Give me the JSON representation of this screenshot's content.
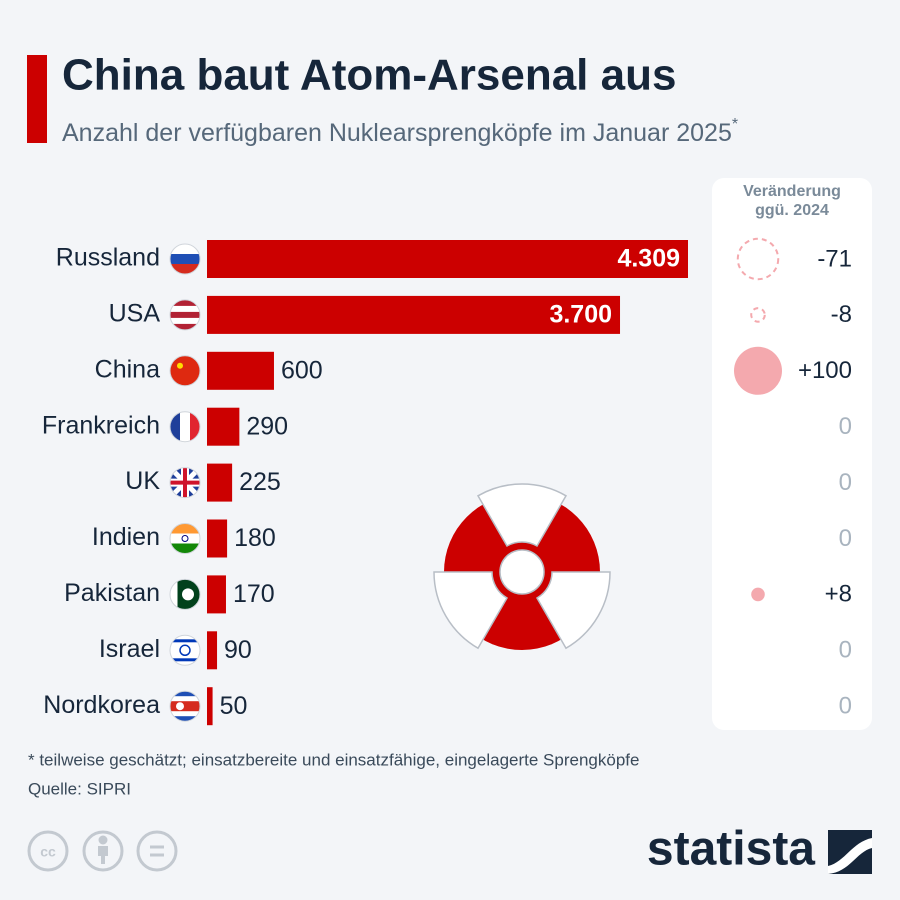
{
  "chart_data": {
    "type": "bar",
    "orientation": "horizontal",
    "title": "China baut Atom-Arsenal aus",
    "subtitle": "Anzahl der verfügbaren Nuklearsprengköpfe im Januar 2025",
    "subtitle_marker": "*",
    "categories": [
      "Russland",
      "USA",
      "China",
      "Frankreich",
      "UK",
      "Indien",
      "Pakistan",
      "Israel",
      "Nordkorea"
    ],
    "values": [
      4309,
      3700,
      600,
      290,
      225,
      180,
      170,
      90,
      50
    ],
    "value_labels": [
      "4.309",
      "3.700",
      "600",
      "290",
      "225",
      "180",
      "170",
      "90",
      "50"
    ],
    "color": "#cc0000",
    "change": {
      "title": "Veränderung ggü. 2024",
      "values": [
        -71,
        -8,
        100,
        0,
        0,
        0,
        8,
        0,
        0
      ],
      "value_labels": [
        "-71",
        "-8",
        "+100",
        "0",
        "0",
        "0",
        "+8",
        "0",
        "0"
      ],
      "color": "#f4a9ae"
    },
    "footnote": "* teilweise geschätzt; einsatzbereite und einsatzfähige, eingelagerte Sprengköpfe",
    "source": "Quelle: SIPRI",
    "brand": "statista"
  }
}
